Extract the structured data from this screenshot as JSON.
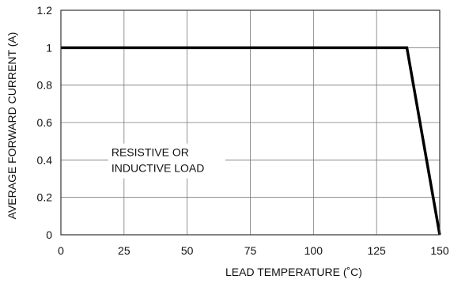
{
  "chart_data": {
    "type": "line",
    "title": "",
    "xlabel": "LEAD TEMPERATURE (˚C)",
    "ylabel": "AVERAGE FORWARD CURRENT (A)",
    "xlim": [
      0,
      150
    ],
    "ylim": [
      0,
      1.2
    ],
    "x_ticks": [
      0,
      25,
      50,
      75,
      100,
      125,
      150
    ],
    "x_tick_labels": [
      "0",
      "25",
      "50",
      "75",
      "100",
      "125",
      "150"
    ],
    "y_ticks": [
      0,
      0.2,
      0.4,
      0.6,
      0.8,
      1.0,
      1.2
    ],
    "y_tick_labels": [
      "0",
      "0.2",
      "0.4",
      "0.6",
      "0.8",
      "1",
      "1.2"
    ],
    "grid": true,
    "series": [
      {
        "x": [
          0,
          137,
          150
        ],
        "y": [
          1.0,
          1.0,
          0.0
        ]
      }
    ],
    "annotations": [
      {
        "lines": [
          "RESISTIVE OR",
          "INDUCTIVE LOAD"
        ],
        "x": 20,
        "y": 0.42
      }
    ]
  }
}
